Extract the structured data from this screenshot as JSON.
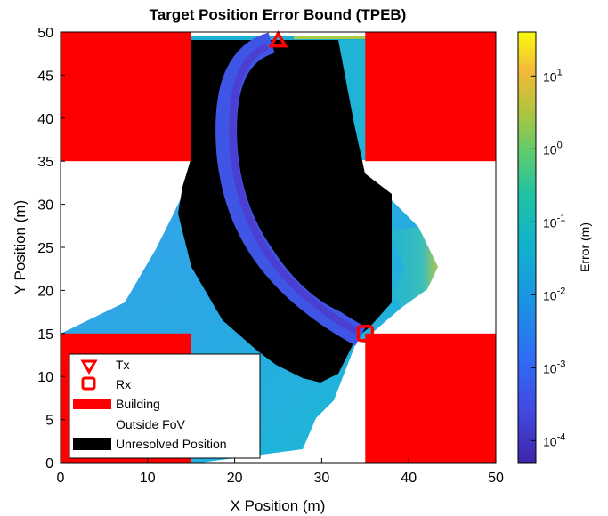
{
  "chart_data": {
    "type": "heatmap",
    "title": "Target Position Error Bound (TPEB)",
    "xlabel": "X Position (m)",
    "ylabel": "Y Position (m)",
    "xlim": [
      0,
      50
    ],
    "ylim": [
      0,
      50
    ],
    "x_ticks": [
      0,
      10,
      20,
      30,
      40,
      50
    ],
    "y_ticks": [
      0,
      5,
      10,
      15,
      20,
      25,
      30,
      35,
      40,
      45,
      50
    ],
    "colorbar": {
      "label": "Error (m)",
      "scale": "log",
      "range": [
        5e-05,
        40
      ],
      "ticks": [
        {
          "value": 0.0001,
          "base": "10",
          "exp": "-4"
        },
        {
          "value": 0.001,
          "base": "10",
          "exp": "-3"
        },
        {
          "value": 0.01,
          "base": "10",
          "exp": "-2"
        },
        {
          "value": 0.1,
          "base": "10",
          "exp": "-1"
        },
        {
          "value": 1,
          "base": "10",
          "exp": "0"
        },
        {
          "value": 10,
          "base": "10",
          "exp": "1"
        }
      ],
      "colormap": "parula"
    },
    "buildings": [
      {
        "x0": 0,
        "x1": 15,
        "y0": 35,
        "y1": 50
      },
      {
        "x0": 35,
        "x1": 50,
        "y0": 35,
        "y1": 50
      },
      {
        "x0": 0,
        "x1": 15,
        "y0": 0,
        "y1": 15
      },
      {
        "x0": 35,
        "x1": 50,
        "y0": 0,
        "y1": 15
      }
    ],
    "tx": {
      "x": 25,
      "y": 49
    },
    "rx": {
      "x": 35,
      "y": 15
    },
    "legend": {
      "placement": "bottom-left",
      "entries": [
        {
          "label": "Tx",
          "marker": "triangle",
          "color": "#ff0000"
        },
        {
          "label": "Rx",
          "marker": "square",
          "color": "#ff0000"
        },
        {
          "label": "Building",
          "marker": "patch",
          "color": "#ff0000"
        },
        {
          "label": "Outside FoV",
          "marker": "patch",
          "color": "#ffffff"
        },
        {
          "label": "Unresolved Position",
          "marker": "patch",
          "color": "#000000"
        }
      ]
    },
    "colors": {
      "building": "#ff0000",
      "unresolved": "#000000",
      "outside": "#ffffff"
    }
  }
}
